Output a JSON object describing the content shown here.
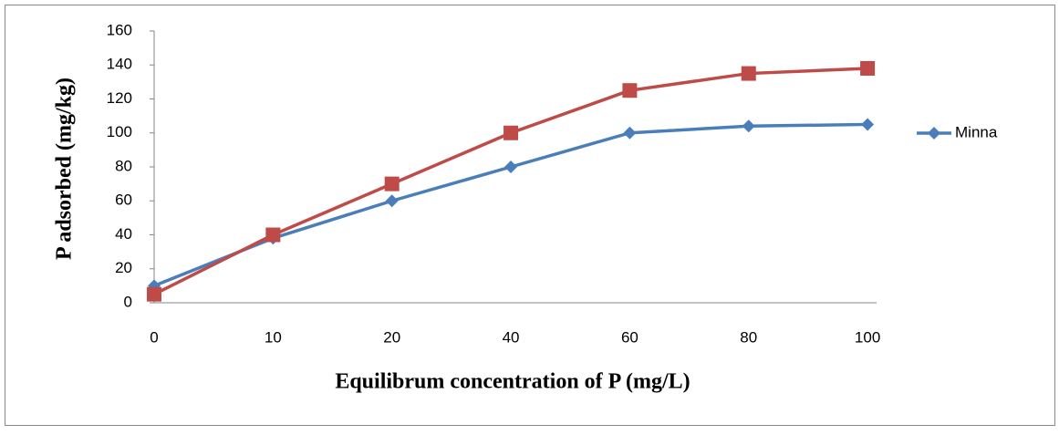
{
  "chart_data": {
    "type": "line",
    "x_label": "Equilibrum concentration of P (mg/L)",
    "y_label": "P adsorbed (mg/kg)",
    "categories": [
      "0",
      "10",
      "20",
      "40",
      "60",
      "80",
      "100"
    ],
    "series": [
      {
        "name": "Minna",
        "color": "#4a7ebb",
        "marker": "diamond",
        "values": [
          10,
          38,
          60,
          80,
          100,
          104,
          105
        ]
      },
      {
        "color": "#be4b48",
        "marker": "square",
        "values": [
          5,
          40,
          70,
          100,
          125,
          135,
          138
        ]
      }
    ],
    "ylim": [
      0,
      160
    ],
    "yticks": [
      0,
      20,
      40,
      60,
      80,
      100,
      120,
      140,
      160
    ],
    "grid": false,
    "legend": "right"
  }
}
